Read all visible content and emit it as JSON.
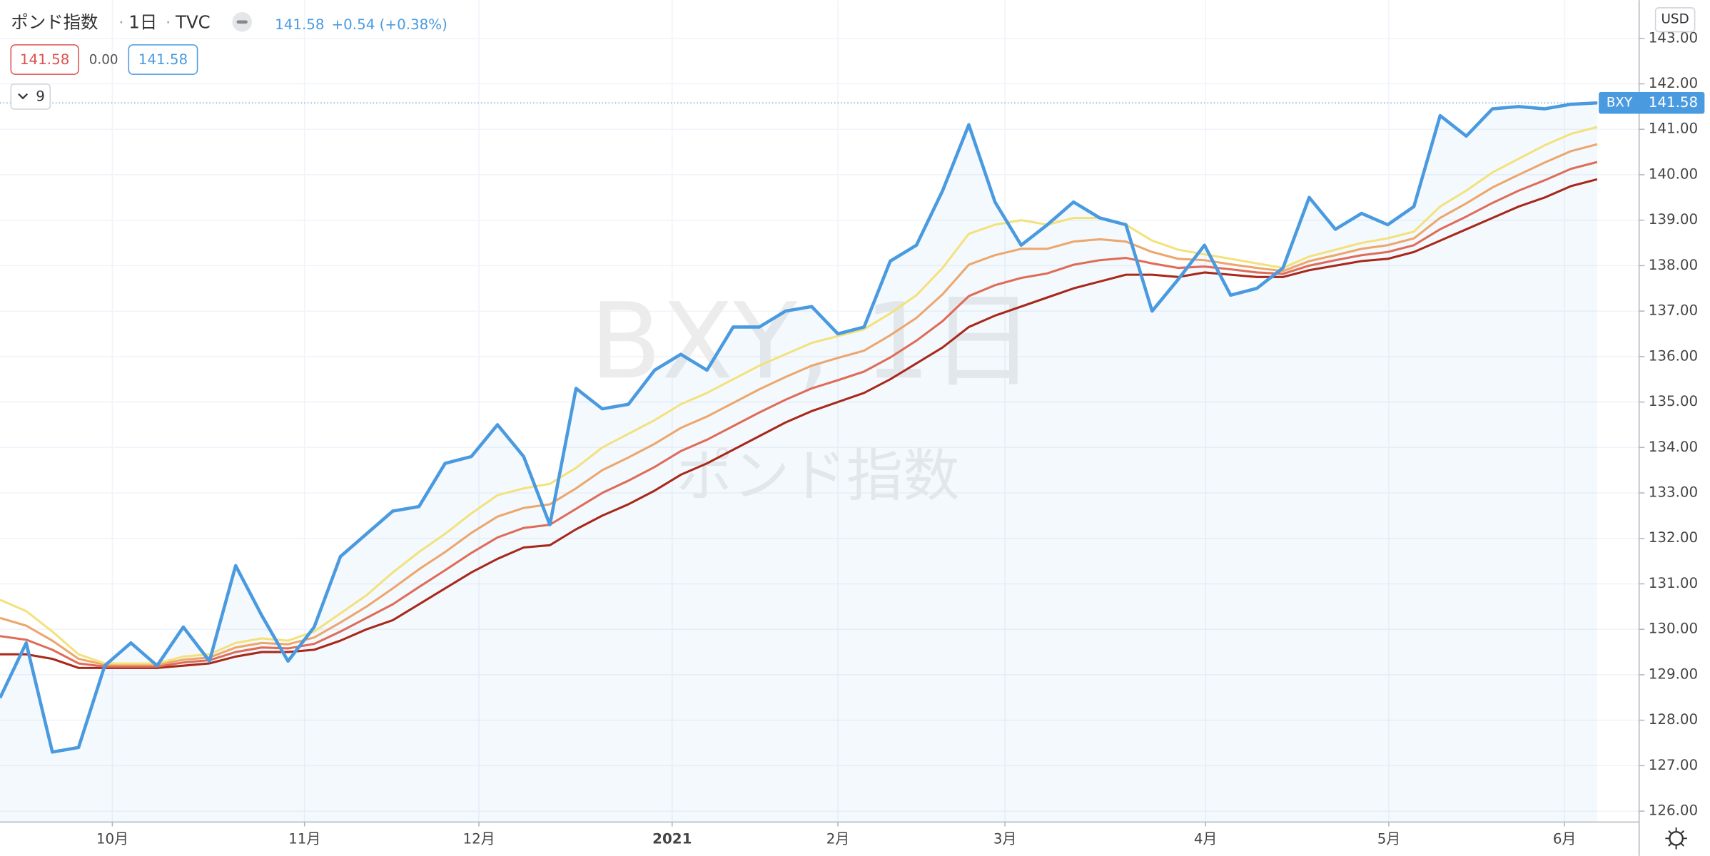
{
  "chart_data": {
    "type": "line",
    "title": "ポンド指数",
    "interval": "1日",
    "exchange": "TVC",
    "change_label": "+0.54 (+0.38%)",
    "spread": "0.00",
    "indicator_count": 9,
    "currency": "USD",
    "watermark": "BXY, 1日",
    "xlim": [
      0,
      62.6
    ],
    "xticks": [
      {
        "value": 4.29,
        "label": "10月"
      },
      {
        "value": 11.63,
        "label": "11月"
      },
      {
        "value": 18.29,
        "label": "12月"
      },
      {
        "value": 25.67,
        "label": "2021"
      },
      {
        "value": 32,
        "label": "2月"
      },
      {
        "value": 38.38,
        "label": "3月"
      },
      {
        "value": 46.04,
        "label": "4月"
      },
      {
        "value": 53.04,
        "label": "5月"
      },
      {
        "value": 59.75,
        "label": "6月"
      }
    ],
    "ylim": [
      125.76,
      143.84
    ],
    "yticks": [
      {
        "value": 126,
        "label": "126.00"
      },
      {
        "value": 127,
        "label": "127.00"
      },
      {
        "value": 128,
        "label": "128.00"
      },
      {
        "value": 129,
        "label": "129.00"
      },
      {
        "value": 130,
        "label": "130.00"
      },
      {
        "value": 131,
        "label": "131.00"
      },
      {
        "value": 132,
        "label": "132.00"
      },
      {
        "value": 133,
        "label": "133.00"
      },
      {
        "value": 134,
        "label": "134.00"
      },
      {
        "value": 135,
        "label": "135.00"
      },
      {
        "value": 136,
        "label": "136.00"
      },
      {
        "value": 137,
        "label": "137.00"
      },
      {
        "value": 138,
        "label": "138.00"
      },
      {
        "value": 139,
        "label": "139.00"
      },
      {
        "value": 140,
        "label": "140.00"
      },
      {
        "value": 141,
        "label": "141.00"
      },
      {
        "value": 142,
        "label": "142.00"
      },
      {
        "value": 143,
        "label": "143.00"
      }
    ],
    "grid": true,
    "series": [
      {
        "name": "BXY",
        "color": "#4a9ae0",
        "values": [
          128.49,
          129.7,
          127.3,
          127.4,
          129.2,
          129.7,
          129.2,
          130.05,
          129.3,
          131.4,
          130.3,
          129.3,
          130.05,
          131.6,
          132.1,
          132.6,
          132.7,
          133.65,
          133.8,
          134.5,
          133.8,
          132.3,
          135.3,
          134.85,
          134.95,
          135.7,
          136.05,
          135.7,
          136.65,
          136.65,
          137.0,
          137.1,
          136.5,
          136.65,
          138.1,
          138.45,
          139.65,
          141.1,
          139.4,
          138.45,
          138.9,
          139.4,
          139.05,
          138.9,
          137.0,
          137.7,
          138.45,
          137.35,
          137.5,
          137.95,
          139.5,
          138.8,
          139.15,
          138.9,
          139.3,
          141.3,
          140.85,
          141.45,
          141.5,
          141.45,
          141.55,
          141.58
        ]
      },
      {
        "color": "#f3e27c",
        "values": [
          130.65,
          130.4,
          129.95,
          129.45,
          129.25,
          129.25,
          129.25,
          129.4,
          129.45,
          129.7,
          129.8,
          129.75,
          129.95,
          130.35,
          130.75,
          131.25,
          131.7,
          132.1,
          132.55,
          132.95,
          133.1,
          133.2,
          133.55,
          134.0,
          134.3,
          134.6,
          134.95,
          135.2,
          135.5,
          135.8,
          136.05,
          136.3,
          136.45,
          136.6,
          136.95,
          137.35,
          137.95,
          138.7,
          138.9,
          139.0,
          138.9,
          139.05,
          139.05,
          138.9,
          138.55,
          138.35,
          138.25,
          138.15,
          138.05,
          137.95,
          138.2,
          138.35,
          138.5,
          138.6,
          138.75,
          139.3,
          139.65,
          140.05,
          140.35,
          140.65,
          140.9,
          141.05
        ]
      },
      {
        "color": "#eda66c",
        "values": [
          130.25,
          130.08,
          129.75,
          129.35,
          129.22,
          129.22,
          129.22,
          129.33,
          129.38,
          129.6,
          129.7,
          129.67,
          129.82,
          130.15,
          130.5,
          130.9,
          131.32,
          131.7,
          132.12,
          132.48,
          132.67,
          132.75,
          133.1,
          133.5,
          133.78,
          134.08,
          134.43,
          134.68,
          134.98,
          135.28,
          135.55,
          135.8,
          135.97,
          136.13,
          136.47,
          136.85,
          137.37,
          138.02,
          138.23,
          138.37,
          138.37,
          138.53,
          138.58,
          138.53,
          138.3,
          138.15,
          138.12,
          138.03,
          137.95,
          137.88,
          138.1,
          138.23,
          138.37,
          138.45,
          138.6,
          139.05,
          139.37,
          139.72,
          140.0,
          140.27,
          140.52,
          140.67
        ]
      },
      {
        "color": "#df6c58",
        "values": [
          129.85,
          129.77,
          129.55,
          129.25,
          129.18,
          129.18,
          129.18,
          129.27,
          129.32,
          129.5,
          129.6,
          129.58,
          129.68,
          129.95,
          130.25,
          130.55,
          130.93,
          131.3,
          131.68,
          132.02,
          132.23,
          132.3,
          132.65,
          133.0,
          133.27,
          133.57,
          133.92,
          134.17,
          134.47,
          134.77,
          135.05,
          135.3,
          135.48,
          135.67,
          135.98,
          136.35,
          136.78,
          137.33,
          137.57,
          137.73,
          137.83,
          138.02,
          138.12,
          138.17,
          138.05,
          137.95,
          137.98,
          137.92,
          137.85,
          137.82,
          138.0,
          138.12,
          138.23,
          138.3,
          138.45,
          138.8,
          139.08,
          139.38,
          139.65,
          139.88,
          140.13,
          140.28
        ]
      },
      {
        "color": "#a8281a",
        "values": [
          129.45,
          129.45,
          129.35,
          129.15,
          129.15,
          129.15,
          129.15,
          129.2,
          129.25,
          129.4,
          129.5,
          129.5,
          129.55,
          129.75,
          130.0,
          130.2,
          130.55,
          130.9,
          131.25,
          131.55,
          131.8,
          131.85,
          132.2,
          132.5,
          132.75,
          133.05,
          133.4,
          133.65,
          133.95,
          134.25,
          134.55,
          134.8,
          135.0,
          135.2,
          135.5,
          135.85,
          136.2,
          136.65,
          136.9,
          137.1,
          137.3,
          137.5,
          137.65,
          137.8,
          137.8,
          137.75,
          137.85,
          137.8,
          137.75,
          137.75,
          137.9,
          138.0,
          138.1,
          138.15,
          138.3,
          138.55,
          138.8,
          139.05,
          139.3,
          139.5,
          139.75,
          139.9
        ]
      }
    ]
  }
}
